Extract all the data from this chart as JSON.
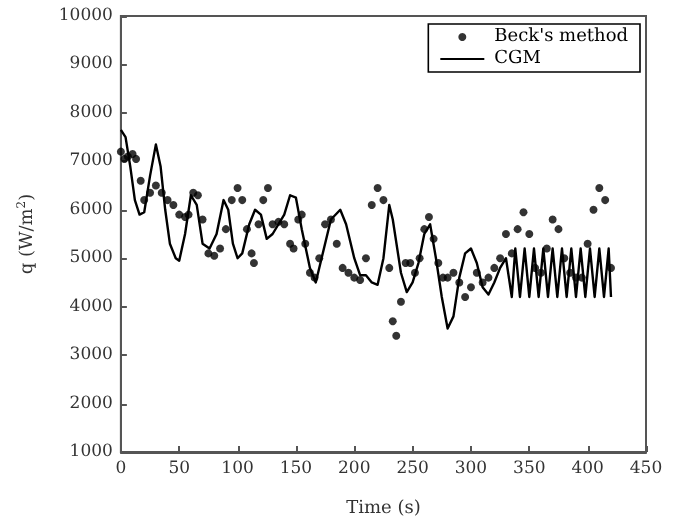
{
  "chart_data": {
    "type": "scatter",
    "xlabel": "Time (s)",
    "ylabel": "q (W/m$^{2}$)",
    "xlim": [
      0,
      450
    ],
    "xticks": [
      0,
      50,
      100,
      150,
      200,
      250,
      300,
      350,
      400,
      450
    ],
    "ylim": [
      1000,
      10000
    ],
    "yticks": [
      1000,
      2000,
      3000,
      4000,
      5000,
      6000,
      7000,
      8000,
      9000,
      10000
    ],
    "grid": false,
    "legend": "top right",
    "series": [
      {
        "name": "Beck's method",
        "marker": "circle",
        "color": "#000000",
        "x": [
          0,
          3,
          6,
          10,
          13,
          17,
          20,
          25,
          30,
          35,
          40,
          45,
          50,
          55,
          58,
          62,
          66,
          70,
          75,
          80,
          85,
          90,
          95,
          100,
          104,
          108,
          112,
          114,
          118,
          122,
          126,
          130,
          135,
          140,
          145,
          148,
          152,
          155,
          158,
          162,
          166,
          170,
          175,
          180,
          185,
          190,
          195,
          200,
          205,
          210,
          215,
          220,
          225,
          230,
          233,
          236,
          240,
          244,
          248,
          252,
          256,
          260,
          264,
          268,
          272,
          276,
          280,
          285,
          290,
          295,
          300,
          305,
          310,
          315,
          320,
          325,
          330,
          335,
          340,
          345,
          350,
          355,
          360,
          365,
          370,
          375,
          380,
          385,
          390,
          395,
          400,
          405,
          410,
          415,
          420
        ],
        "values": [
          7200,
          7050,
          7100,
          7150,
          7050,
          6600,
          6200,
          6350,
          6500,
          6350,
          6200,
          6100,
          5900,
          5850,
          5900,
          6350,
          6300,
          5800,
          5100,
          5050,
          5200,
          5600,
          6200,
          6450,
          6200,
          5600,
          5100,
          4900,
          5700,
          6200,
          6450,
          5700,
          5750,
          5700,
          5300,
          5200,
          5800,
          5900,
          5300,
          4700,
          4600,
          5000,
          5700,
          5800,
          5300,
          4800,
          4700,
          4600,
          4550,
          5000,
          6100,
          6450,
          6200,
          4800,
          3700,
          3400,
          4100,
          4900,
          4900,
          4700,
          5000,
          5600,
          5850,
          5400,
          4900,
          4600,
          4600,
          4700,
          4500,
          4200,
          4400,
          4700,
          4500,
          4600,
          4800,
          5000,
          5500,
          5100,
          5600,
          5950,
          5500,
          4800,
          4700,
          5200,
          5800,
          5600,
          5000,
          4700,
          4600,
          4600,
          5300,
          6000,
          6450,
          6200,
          4800
        ]
      },
      {
        "name": "CGM",
        "type": "line",
        "marker": "none",
        "line_style": "solid",
        "color": "#000000",
        "x": [
          0,
          4,
          8,
          12,
          16,
          20,
          25,
          30,
          34,
          38,
          42,
          47,
          50,
          55,
          60,
          65,
          70,
          76,
          82,
          88,
          92,
          96,
          100,
          104,
          110,
          115,
          120,
          125,
          130,
          140,
          145,
          150,
          155,
          162,
          167,
          172,
          180,
          188,
          193,
          200,
          205,
          210,
          215,
          220,
          225,
          230,
          233,
          240,
          245,
          250,
          255,
          260,
          265,
          270,
          275,
          280,
          285,
          290,
          295,
          300,
          305,
          310,
          315,
          320,
          325,
          330,
          335,
          338,
          342,
          346,
          350,
          354,
          358,
          362,
          366,
          370,
          374,
          378,
          382,
          386,
          390,
          394,
          398,
          402,
          406,
          410,
          414,
          418,
          420
        ],
        "values": [
          7650,
          7500,
          6900,
          6200,
          5900,
          5950,
          6700,
          7350,
          6900,
          6000,
          5300,
          5000,
          4950,
          5500,
          6300,
          6100,
          5300,
          5200,
          5500,
          6200,
          6000,
          5300,
          5000,
          5100,
          5700,
          6000,
          5900,
          5400,
          5500,
          5900,
          6300,
          6250,
          5600,
          4800,
          4500,
          5000,
          5800,
          6000,
          5700,
          5000,
          4650,
          4650,
          4500,
          4450,
          5000,
          6100,
          5800,
          4700,
          4300,
          4500,
          4900,
          5500,
          5700,
          5000,
          4200,
          3550,
          3800,
          4600,
          5100,
          5200,
          4900,
          4400,
          4250,
          4500,
          4800,
          5000,
          4200,
          5200,
          4200,
          5200,
          4200,
          5200,
          4200,
          5200,
          4200,
          5200,
          4200,
          5200,
          4200,
          5200,
          4200,
          5200,
          4200,
          5200,
          4200,
          5200,
          4200,
          5200,
          4200
        ]
      }
    ]
  }
}
